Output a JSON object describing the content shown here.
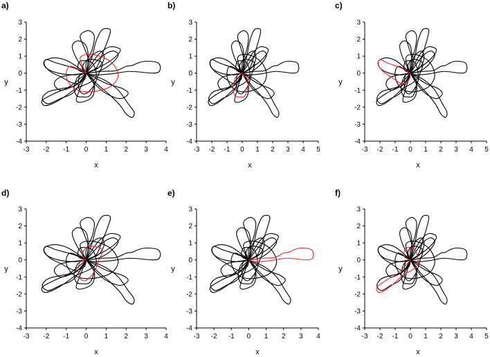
{
  "colors": {
    "background": "#black",
    "curve": "#000000",
    "highlight": "#e8262a",
    "axis": "#000000"
  },
  "chart_data": [
    {
      "type": "line",
      "label": "a)",
      "xlabel": "x",
      "ylabel": "y",
      "xlim": [
        -3,
        4
      ],
      "ylim": [
        -4,
        3
      ],
      "xticks": [
        -3,
        -2,
        -1,
        0,
        1,
        2,
        3,
        4
      ],
      "yticks": [
        -4,
        -3,
        -2,
        -1,
        0,
        1,
        2,
        3
      ],
      "highlight_lobe": 0
    },
    {
      "type": "line",
      "label": "b)",
      "xlabel": "x",
      "ylabel": "y",
      "xlim": [
        -3,
        5
      ],
      "ylim": [
        -4,
        3
      ],
      "xticks": [
        -3,
        -2,
        -1,
        0,
        1,
        2,
        3,
        4,
        5
      ],
      "yticks": [
        -4,
        -3,
        -2,
        -1,
        0,
        1,
        2,
        3
      ],
      "highlight_lobe": 1
    },
    {
      "type": "line",
      "label": "c)",
      "xlabel": "x",
      "ylabel": "y",
      "xlim": [
        -3,
        5
      ],
      "ylim": [
        -4,
        3
      ],
      "xticks": [
        -3,
        -2,
        -1,
        0,
        1,
        2,
        3,
        4,
        5
      ],
      "yticks": [
        -4,
        -3,
        -2,
        -1,
        0,
        1,
        2,
        3
      ],
      "highlight_lobe": 2
    },
    {
      "type": "line",
      "label": "d)",
      "xlabel": "x",
      "ylabel": "y",
      "xlim": [
        -3,
        4
      ],
      "ylim": [
        -4,
        3
      ],
      "xticks": [
        -3,
        -2,
        -1,
        0,
        1,
        2,
        3,
        4
      ],
      "yticks": [
        -4,
        -3,
        -2,
        -1,
        0,
        1,
        2,
        3
      ],
      "highlight_lobe": 3
    },
    {
      "type": "line",
      "label": "e)",
      "xlabel": "x",
      "ylabel": "y",
      "xlim": [
        -3,
        4
      ],
      "ylim": [
        -4,
        3
      ],
      "xticks": [
        -3,
        -2,
        -1,
        0,
        1,
        2,
        3,
        4
      ],
      "yticks": [
        -4,
        -3,
        -2,
        -1,
        0,
        1,
        2,
        3
      ],
      "highlight_lobe": 4
    },
    {
      "type": "line",
      "label": "f)",
      "xlabel": "x",
      "ylabel": "y",
      "xlim": [
        -3,
        5
      ],
      "ylim": [
        -4,
        3
      ],
      "xticks": [
        -3,
        -2,
        -1,
        0,
        1,
        2,
        3,
        4,
        5
      ],
      "yticks": [
        -4,
        -3,
        -2,
        -1,
        0,
        1,
        2,
        3
      ],
      "highlight_lobe": 5
    }
  ],
  "curve": {
    "lobes": [
      {
        "points": [
          [
            0,
            0
          ],
          [
            -0.8,
            0.4
          ],
          [
            -1,
            -0.2
          ],
          [
            -0.6,
            -0.9
          ],
          [
            0.2,
            -1.1
          ],
          [
            1.2,
            -0.8
          ],
          [
            1.6,
            -0.1
          ],
          [
            1.2,
            0.7
          ],
          [
            0.3,
            1.1
          ],
          [
            -0.3,
            0.9
          ],
          [
            0,
            0
          ]
        ]
      },
      {
        "points": [
          [
            0,
            0
          ],
          [
            0.4,
            -0.5
          ],
          [
            0.2,
            -1.3
          ],
          [
            -0.2,
            -1.4
          ],
          [
            -0.5,
            -1.3
          ],
          [
            -0.6,
            -0.8
          ],
          [
            -0.4,
            -0.2
          ],
          [
            0,
            0
          ]
        ]
      },
      {
        "points": [
          [
            0,
            0
          ],
          [
            -0.6,
            0.3
          ],
          [
            -1.5,
            0.6
          ],
          [
            -2,
            0.8
          ],
          [
            -2.1,
            0.5
          ],
          [
            -1.8,
            0.1
          ],
          [
            -1.3,
            -0.2
          ],
          [
            -0.6,
            -0.6
          ],
          [
            -0.1,
            -0.4
          ],
          [
            0,
            0
          ]
        ]
      },
      {
        "points": [
          [
            0,
            0
          ],
          [
            -0.2,
            0.3
          ],
          [
            0.1,
            0.8
          ],
          [
            0.8,
            0.6
          ],
          [
            0.6,
            -0.1
          ],
          [
            0.4,
            -0.7
          ],
          [
            0,
            -1.2
          ],
          [
            -0.3,
            -1.1
          ],
          [
            -0.4,
            -0.6
          ],
          [
            -0.3,
            -0.1
          ],
          [
            0,
            0
          ]
        ]
      },
      {
        "points": [
          [
            0,
            0
          ],
          [
            0.8,
            0.1
          ],
          [
            1.5,
            0.15
          ],
          [
            2,
            0.4
          ],
          [
            2.3,
            0.45
          ],
          [
            2.6,
            0.6
          ],
          [
            3,
            0.7
          ],
          [
            3.6,
            0.6
          ],
          [
            3.7,
            0.2
          ],
          [
            3.4,
            0
          ],
          [
            2.2,
            0.1
          ],
          [
            1.2,
            -0.05
          ],
          [
            0.4,
            -0.1
          ],
          [
            0,
            0
          ]
        ]
      },
      {
        "points": [
          [
            0,
            0
          ],
          [
            -0.6,
            -0.6
          ],
          [
            -1,
            -0.9
          ],
          [
            -1.6,
            -1.2
          ],
          [
            -2.2,
            -1.6
          ],
          [
            -2.1,
            -1.9
          ],
          [
            -1.7,
            -1.8
          ],
          [
            -1.1,
            -1.4
          ],
          [
            -0.5,
            -0.9
          ],
          [
            0.1,
            -0.6
          ],
          [
            0.5,
            -0.2
          ],
          [
            0.3,
            0.6
          ],
          [
            -0.3,
            0.7
          ],
          [
            -0.4,
            0.2
          ],
          [
            0,
            0
          ]
        ]
      },
      {
        "points": [
          [
            0,
            0
          ],
          [
            0.1,
            0.8
          ],
          [
            -0.1,
            1.5
          ],
          [
            -0.3,
            2.2
          ],
          [
            0.1,
            2.5
          ],
          [
            0.4,
            2.2
          ],
          [
            0.3,
            1.4
          ],
          [
            0,
            0.6
          ],
          [
            0,
            0
          ]
        ]
      },
      {
        "points": [
          [
            0,
            0
          ],
          [
            0.3,
            1
          ],
          [
            0.5,
            1.9
          ],
          [
            0.8,
            2.55
          ],
          [
            1.2,
            2.55
          ],
          [
            1.1,
            2
          ],
          [
            0.8,
            1.1
          ],
          [
            0.5,
            0.3
          ],
          [
            0,
            0
          ]
        ]
      },
      {
        "points": [
          [
            0,
            0
          ],
          [
            0.6,
            -0.7
          ],
          [
            1.2,
            -1.3
          ],
          [
            1.7,
            -1.9
          ],
          [
            2,
            -2.4
          ],
          [
            2.3,
            -2.6
          ],
          [
            2.4,
            -2.3
          ],
          [
            2.1,
            -1.8
          ],
          [
            1.6,
            -1
          ],
          [
            0.9,
            -0.4
          ],
          [
            0,
            0
          ]
        ]
      },
      {
        "points": [
          [
            0,
            0
          ],
          [
            -0.9,
            0.7
          ],
          [
            -1.6,
            0.9
          ],
          [
            -2.1,
            0.7
          ],
          [
            -2,
            0.3
          ],
          [
            -1.4,
            0
          ],
          [
            -0.6,
            -0.1
          ],
          [
            0,
            0
          ]
        ]
      },
      {
        "points": [
          [
            0,
            0
          ],
          [
            -0.5,
            -0.7
          ],
          [
            -1.2,
            -0.9
          ],
          [
            -1.9,
            -1.1
          ],
          [
            -2.2,
            -1.5
          ],
          [
            -1.9,
            -1.8
          ],
          [
            -1.3,
            -1.5
          ],
          [
            -0.6,
            -1.1
          ],
          [
            0,
            0
          ]
        ]
      },
      {
        "points": [
          [
            0,
            0
          ],
          [
            0.9,
            0.5
          ],
          [
            1.5,
            1
          ],
          [
            1.7,
            1.4
          ],
          [
            1.2,
            1.55
          ],
          [
            0.7,
            1.2
          ],
          [
            0.3,
            0.6
          ],
          [
            0,
            0
          ]
        ]
      },
      {
        "points": [
          [
            0,
            0
          ],
          [
            -0.5,
            0.9
          ],
          [
            -0.7,
            1.6
          ],
          [
            -0.4,
            1.9
          ],
          [
            0,
            1.6
          ],
          [
            0.1,
            0.8
          ],
          [
            0,
            0
          ]
        ]
      },
      {
        "points": [
          [
            0,
            0
          ],
          [
            1,
            -0.6
          ],
          [
            1.8,
            -0.9
          ],
          [
            2.1,
            -1.2
          ],
          [
            1.7,
            -1.5
          ],
          [
            1,
            -1.2
          ],
          [
            0.4,
            -0.6
          ],
          [
            0,
            0
          ]
        ]
      },
      {
        "points": [
          [
            0,
            0
          ],
          [
            -0.3,
            -0.9
          ],
          [
            -0.5,
            -1.6
          ],
          [
            -0.2,
            -1.7
          ],
          [
            0.3,
            -1.4
          ],
          [
            0.4,
            -0.7
          ],
          [
            0,
            0
          ]
        ]
      },
      {
        "points": [
          [
            0,
            0
          ],
          [
            0.7,
            0.9
          ],
          [
            1.3,
            1.3
          ],
          [
            1.6,
            1.05
          ],
          [
            1.2,
            0.5
          ],
          [
            0.6,
            0.1
          ],
          [
            0,
            0
          ]
        ]
      },
      {
        "points": [
          [
            0,
            0
          ],
          [
            -1.2,
            -0.2
          ],
          [
            -1.6,
            -0.6
          ],
          [
            -1.3,
            -1
          ],
          [
            -0.7,
            -0.8
          ],
          [
            -0.2,
            -0.4
          ],
          [
            0,
            0
          ]
        ]
      },
      {
        "points": [
          [
            0,
            0
          ],
          [
            0.2,
            0.9
          ],
          [
            0.7,
            1.3
          ],
          [
            0.9,
            0.9
          ],
          [
            0.6,
            0.3
          ],
          [
            0,
            0
          ]
        ]
      }
    ]
  }
}
